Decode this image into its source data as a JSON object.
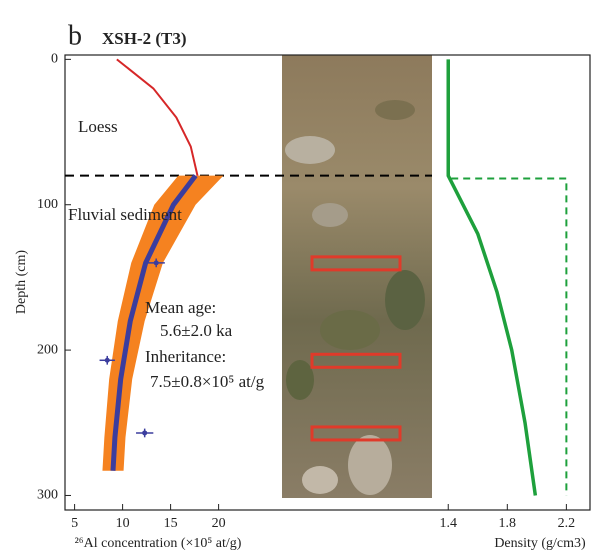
{
  "chart_data": [
    {
      "type": "line",
      "label": "b",
      "title": "XSH-2 (T3)",
      "x_label": "²⁶Al concentration (×10⁵ at/g)",
      "y_label": "Depth (cm)",
      "xlim": [
        4,
        26.5
      ],
      "xticks": [
        5,
        10,
        15,
        20
      ],
      "ylim": [
        -3,
        310
      ],
      "yticks": [
        0,
        100,
        200,
        300
      ],
      "y_inverted": true,
      "boundary": {
        "depth": 80,
        "color": "#000000",
        "dashed": true
      },
      "annotations": [
        "Loess",
        "Fluvial sediment",
        "Mean age:",
        "5.6±2.0 ka",
        "Inheritance:",
        "7.5±0.8×10⁵ at/g"
      ],
      "band": {
        "color": "#f58220",
        "values": [
          80,
          100,
          140,
          180,
          220,
          260,
          283
        ],
        "lower": [
          15.8,
          13.3,
          10.9,
          9.5,
          8.6,
          8.1,
          7.9
        ],
        "upper": [
          20.5,
          17.6,
          14.2,
          12.3,
          11.0,
          10.3,
          10.1
        ]
      },
      "series": [
        {
          "color": "#d62728",
          "x": [
            9.4,
            13.2,
            15.6,
            17.1,
            17.8
          ],
          "values": [
            0,
            20,
            40,
            60,
            80
          ]
        },
        {
          "color": "#3b3d9e",
          "x": [
            17.6,
            15.3,
            12.4,
            10.8,
            9.8,
            9.2,
            9.0
          ],
          "values": [
            80,
            100,
            140,
            180,
            220,
            260,
            283
          ]
        }
      ],
      "points": {
        "color": "#3b3d9e",
        "x": [
          13.5,
          8.4,
          12.3
        ],
        "values": [
          140,
          207,
          257
        ],
        "x_error": [
          0.9,
          0.8,
          0.9
        ],
        "y_error": [
          3,
          3,
          3
        ]
      },
      "sample_box_color": "#e03a2a"
    },
    {
      "type": "line",
      "x_label": "Density (g/cm3)",
      "xlim": [
        1.29,
        2.36
      ],
      "xticks": [
        1.4,
        1.8,
        2.2
      ],
      "ylim": [
        -3,
        310
      ],
      "y_inverted": true,
      "series": [
        {
          "color": "#1ea03c",
          "dashed": false,
          "x": [
            1.4,
            1.4,
            1.45,
            1.6,
            1.73,
            1.83,
            1.92,
            1.99
          ],
          "values": [
            0,
            80,
            90,
            120,
            160,
            200,
            250,
            300
          ]
        },
        {
          "color": "#1ea03c",
          "dashed": true,
          "x": [
            1.42,
            2.2,
            2.2
          ],
          "values": [
            82,
            82,
            300
          ]
        }
      ]
    }
  ]
}
